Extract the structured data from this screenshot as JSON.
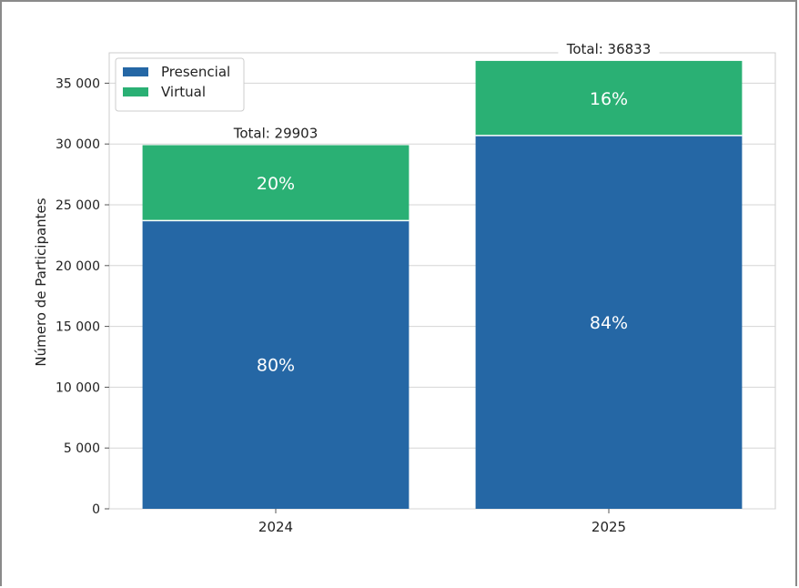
{
  "chart_data": {
    "type": "bar",
    "stacked": true,
    "categories": [
      "2024",
      "2025"
    ],
    "series": [
      {
        "name": "Presencial",
        "values": [
          23700,
          30700
        ],
        "color": "#2567a5"
      },
      {
        "name": "Virtual",
        "values": [
          6203,
          6133
        ],
        "color": "#2ab074"
      }
    ],
    "totals": [
      29903,
      36833
    ],
    "total_labels": [
      "Total: 29903",
      "Total: 36833"
    ],
    "segment_labels": [
      [
        "80%",
        "84%"
      ],
      [
        "20%",
        "16%"
      ]
    ],
    "title": "",
    "xlabel": "",
    "ylabel": "Número de Participantes",
    "ylim": [
      0,
      37500
    ],
    "yticks": [
      0,
      5000,
      10000,
      15000,
      20000,
      25000,
      30000,
      35000
    ],
    "ytick_labels": [
      "0",
      "5 000",
      "10 000",
      "15 000",
      "20 000",
      "25 000",
      "30 000",
      "35 000"
    ],
    "grid": "horizontal",
    "legend_position": "top-left"
  }
}
